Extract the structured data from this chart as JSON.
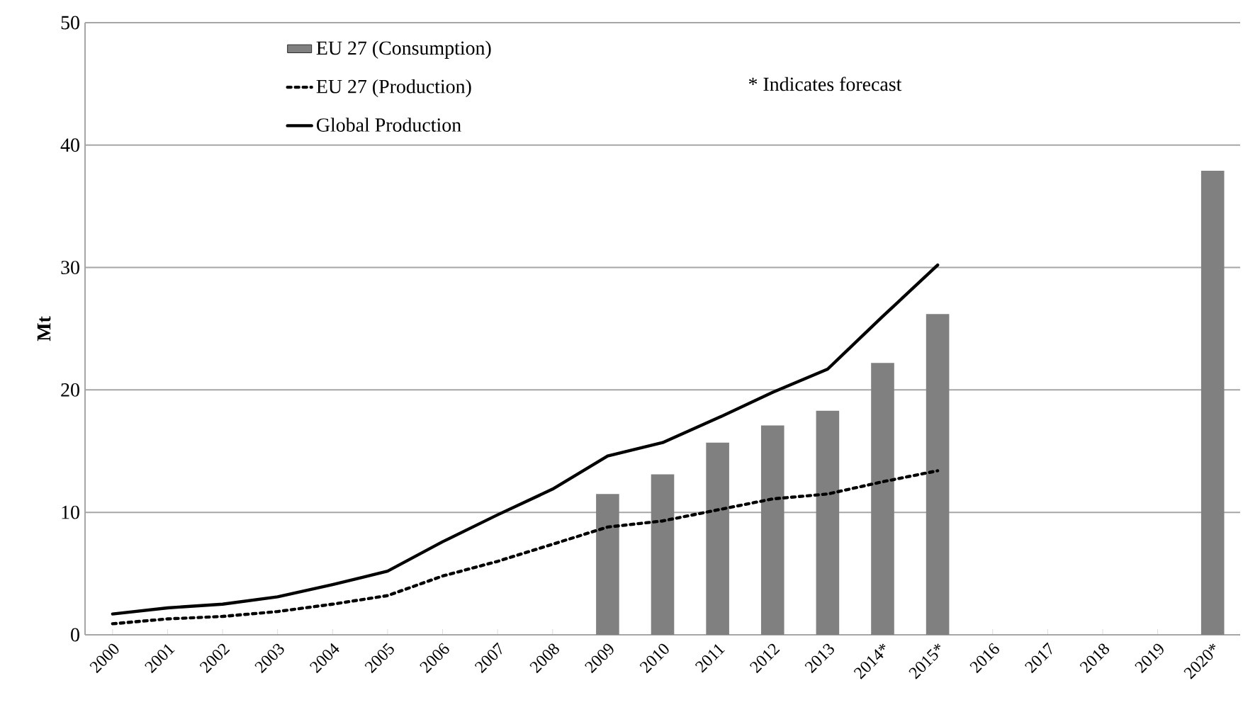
{
  "chart_data": {
    "type": "bar",
    "ylabel": "Mt",
    "categories": [
      "2000",
      "2001",
      "2002",
      "2003",
      "2004",
      "2005",
      "2006",
      "2007",
      "2008",
      "2009",
      "2010",
      "2011",
      "2012",
      "2013",
      "2014*",
      "2015*",
      "2016",
      "2017",
      "2018",
      "2019",
      "2020*"
    ],
    "series": [
      {
        "name": "EU 27 (Consumption)",
        "color": "#808080",
        "values": [
          null,
          null,
          null,
          null,
          null,
          null,
          null,
          null,
          null,
          11.5,
          13.1,
          15.7,
          17.1,
          18.3,
          22.2,
          26.2,
          null,
          null,
          null,
          null,
          37.9
        ]
      },
      {
        "name": "EU 27 (Production)",
        "type": "line",
        "color": "#000000",
        "line_style": "dotted",
        "values": [
          0.9,
          1.3,
          1.5,
          1.9,
          2.5,
          3.2,
          4.8,
          6.0,
          7.4,
          8.8,
          9.3,
          10.2,
          11.1,
          11.5,
          12.5,
          13.4,
          null,
          null,
          null,
          null,
          null
        ]
      },
      {
        "name": "Global Production",
        "type": "line",
        "color": "#000000",
        "line_style": "solid",
        "values": [
          1.7,
          2.2,
          2.5,
          3.1,
          4.1,
          5.2,
          7.6,
          9.8,
          11.9,
          14.6,
          15.7,
          17.7,
          19.8,
          21.7,
          26.0,
          30.2,
          null,
          null,
          null,
          null,
          null
        ]
      }
    ],
    "ylim": [
      0,
      50
    ],
    "yticks": [
      0,
      10,
      20,
      30,
      40,
      50
    ],
    "grid": "y",
    "legend": "top left",
    "marker": "none",
    "annotations": [
      "* Indicates forecast"
    ]
  }
}
